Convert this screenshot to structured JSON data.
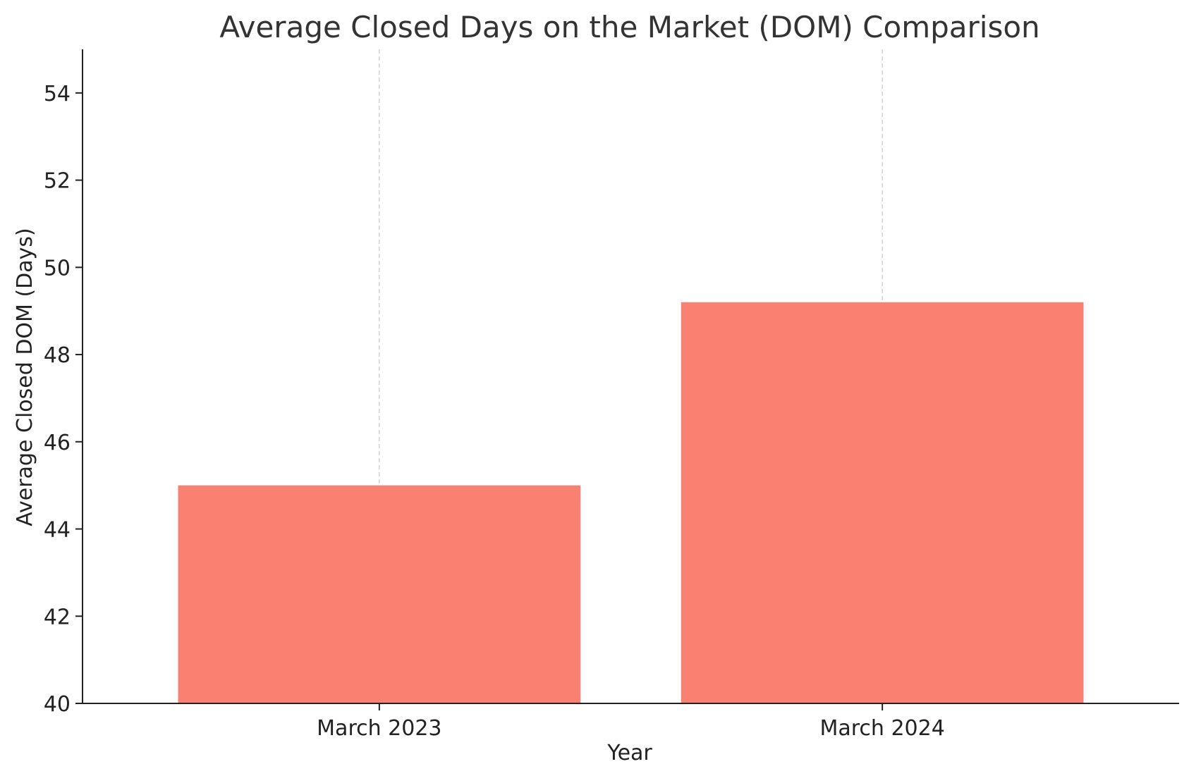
{
  "chart_data": {
    "type": "bar",
    "title": "Average Closed Days on the Market (DOM) Comparison",
    "xlabel": "Year",
    "ylabel": "Average Closed DOM (Days)",
    "categories": [
      "March 2023",
      "March 2024"
    ],
    "values": [
      45,
      49.2
    ],
    "ylim": [
      40,
      55
    ],
    "yticks": [
      40,
      42,
      44,
      46,
      48,
      50,
      52,
      54
    ],
    "grid": "x-dashed",
    "bar_color": "#FA8072"
  }
}
